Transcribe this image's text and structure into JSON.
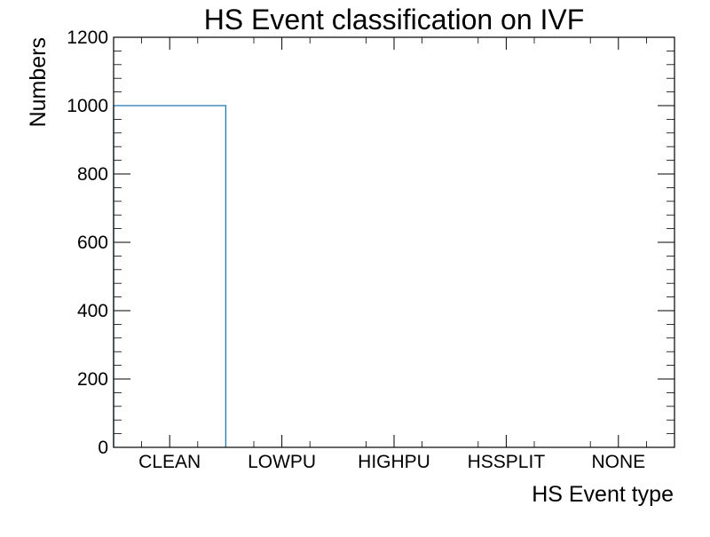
{
  "chart_data": {
    "type": "bar",
    "title": "HS Event classification on IVF",
    "xlabel": "HS Event type",
    "ylabel": "Numbers",
    "categories": [
      "CLEAN",
      "LOWPU",
      "HIGHPU",
      "HSSPLIT",
      "NONE"
    ],
    "values": [
      1000,
      0,
      0,
      0,
      0
    ],
    "ylim": [
      0,
      1200
    ],
    "yticks": [
      0,
      200,
      400,
      600,
      800,
      1000,
      1200
    ],
    "ytick_labels": [
      "0",
      "200",
      "400",
      "600",
      "800",
      "1000",
      "1200"
    ],
    "grid": false,
    "legend": "none",
    "style": "step",
    "colors": {
      "series": "#1f77b4",
      "axes": "#000000"
    }
  }
}
